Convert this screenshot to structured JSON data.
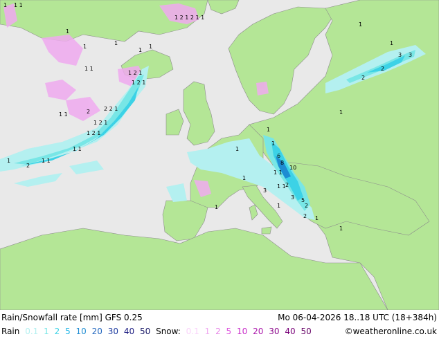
{
  "title": "Rain/Snowfall rate [mm] GFS 0.25",
  "valid_time": "Mo 06-04-2026 18..18 UTC (18+384h)",
  "rain_legend": {
    "label": "Rain",
    "levels": [
      {
        "text": "0.1",
        "color": "#b4f0f0"
      },
      {
        "text": "1",
        "color": "#78e6e6"
      },
      {
        "text": "2",
        "color": "#3cd2e6"
      },
      {
        "text": "5",
        "color": "#1eb4e6"
      },
      {
        "text": "10",
        "color": "#1e8cd2"
      },
      {
        "text": "20",
        "color": "#1e64be"
      },
      {
        "text": "30",
        "color": "#1e3ca0"
      },
      {
        "text": "40",
        "color": "#1e1e82"
      },
      {
        "text": "50",
        "color": "#141464"
      }
    ]
  },
  "snow_legend": {
    "label": "Snow:",
    "levels": [
      {
        "text": "0.1",
        "color": "#fad2fa"
      },
      {
        "text": "1",
        "color": "#f0aaf0"
      },
      {
        "text": "2",
        "color": "#e682e6"
      },
      {
        "text": "5",
        "color": "#dc50dc"
      },
      {
        "text": "10",
        "color": "#c828c8"
      },
      {
        "text": "20",
        "color": "#aa14aa"
      },
      {
        "text": "30",
        "color": "#8c0a8c"
      },
      {
        "text": "40",
        "color": "#780078"
      },
      {
        "text": "50",
        "color": "#640064"
      }
    ]
  },
  "credit": "©weatheronline.co.uk",
  "colors": {
    "sea": "#e9e9e9",
    "land": "#b4e696",
    "border": "#8c8c8c"
  }
}
